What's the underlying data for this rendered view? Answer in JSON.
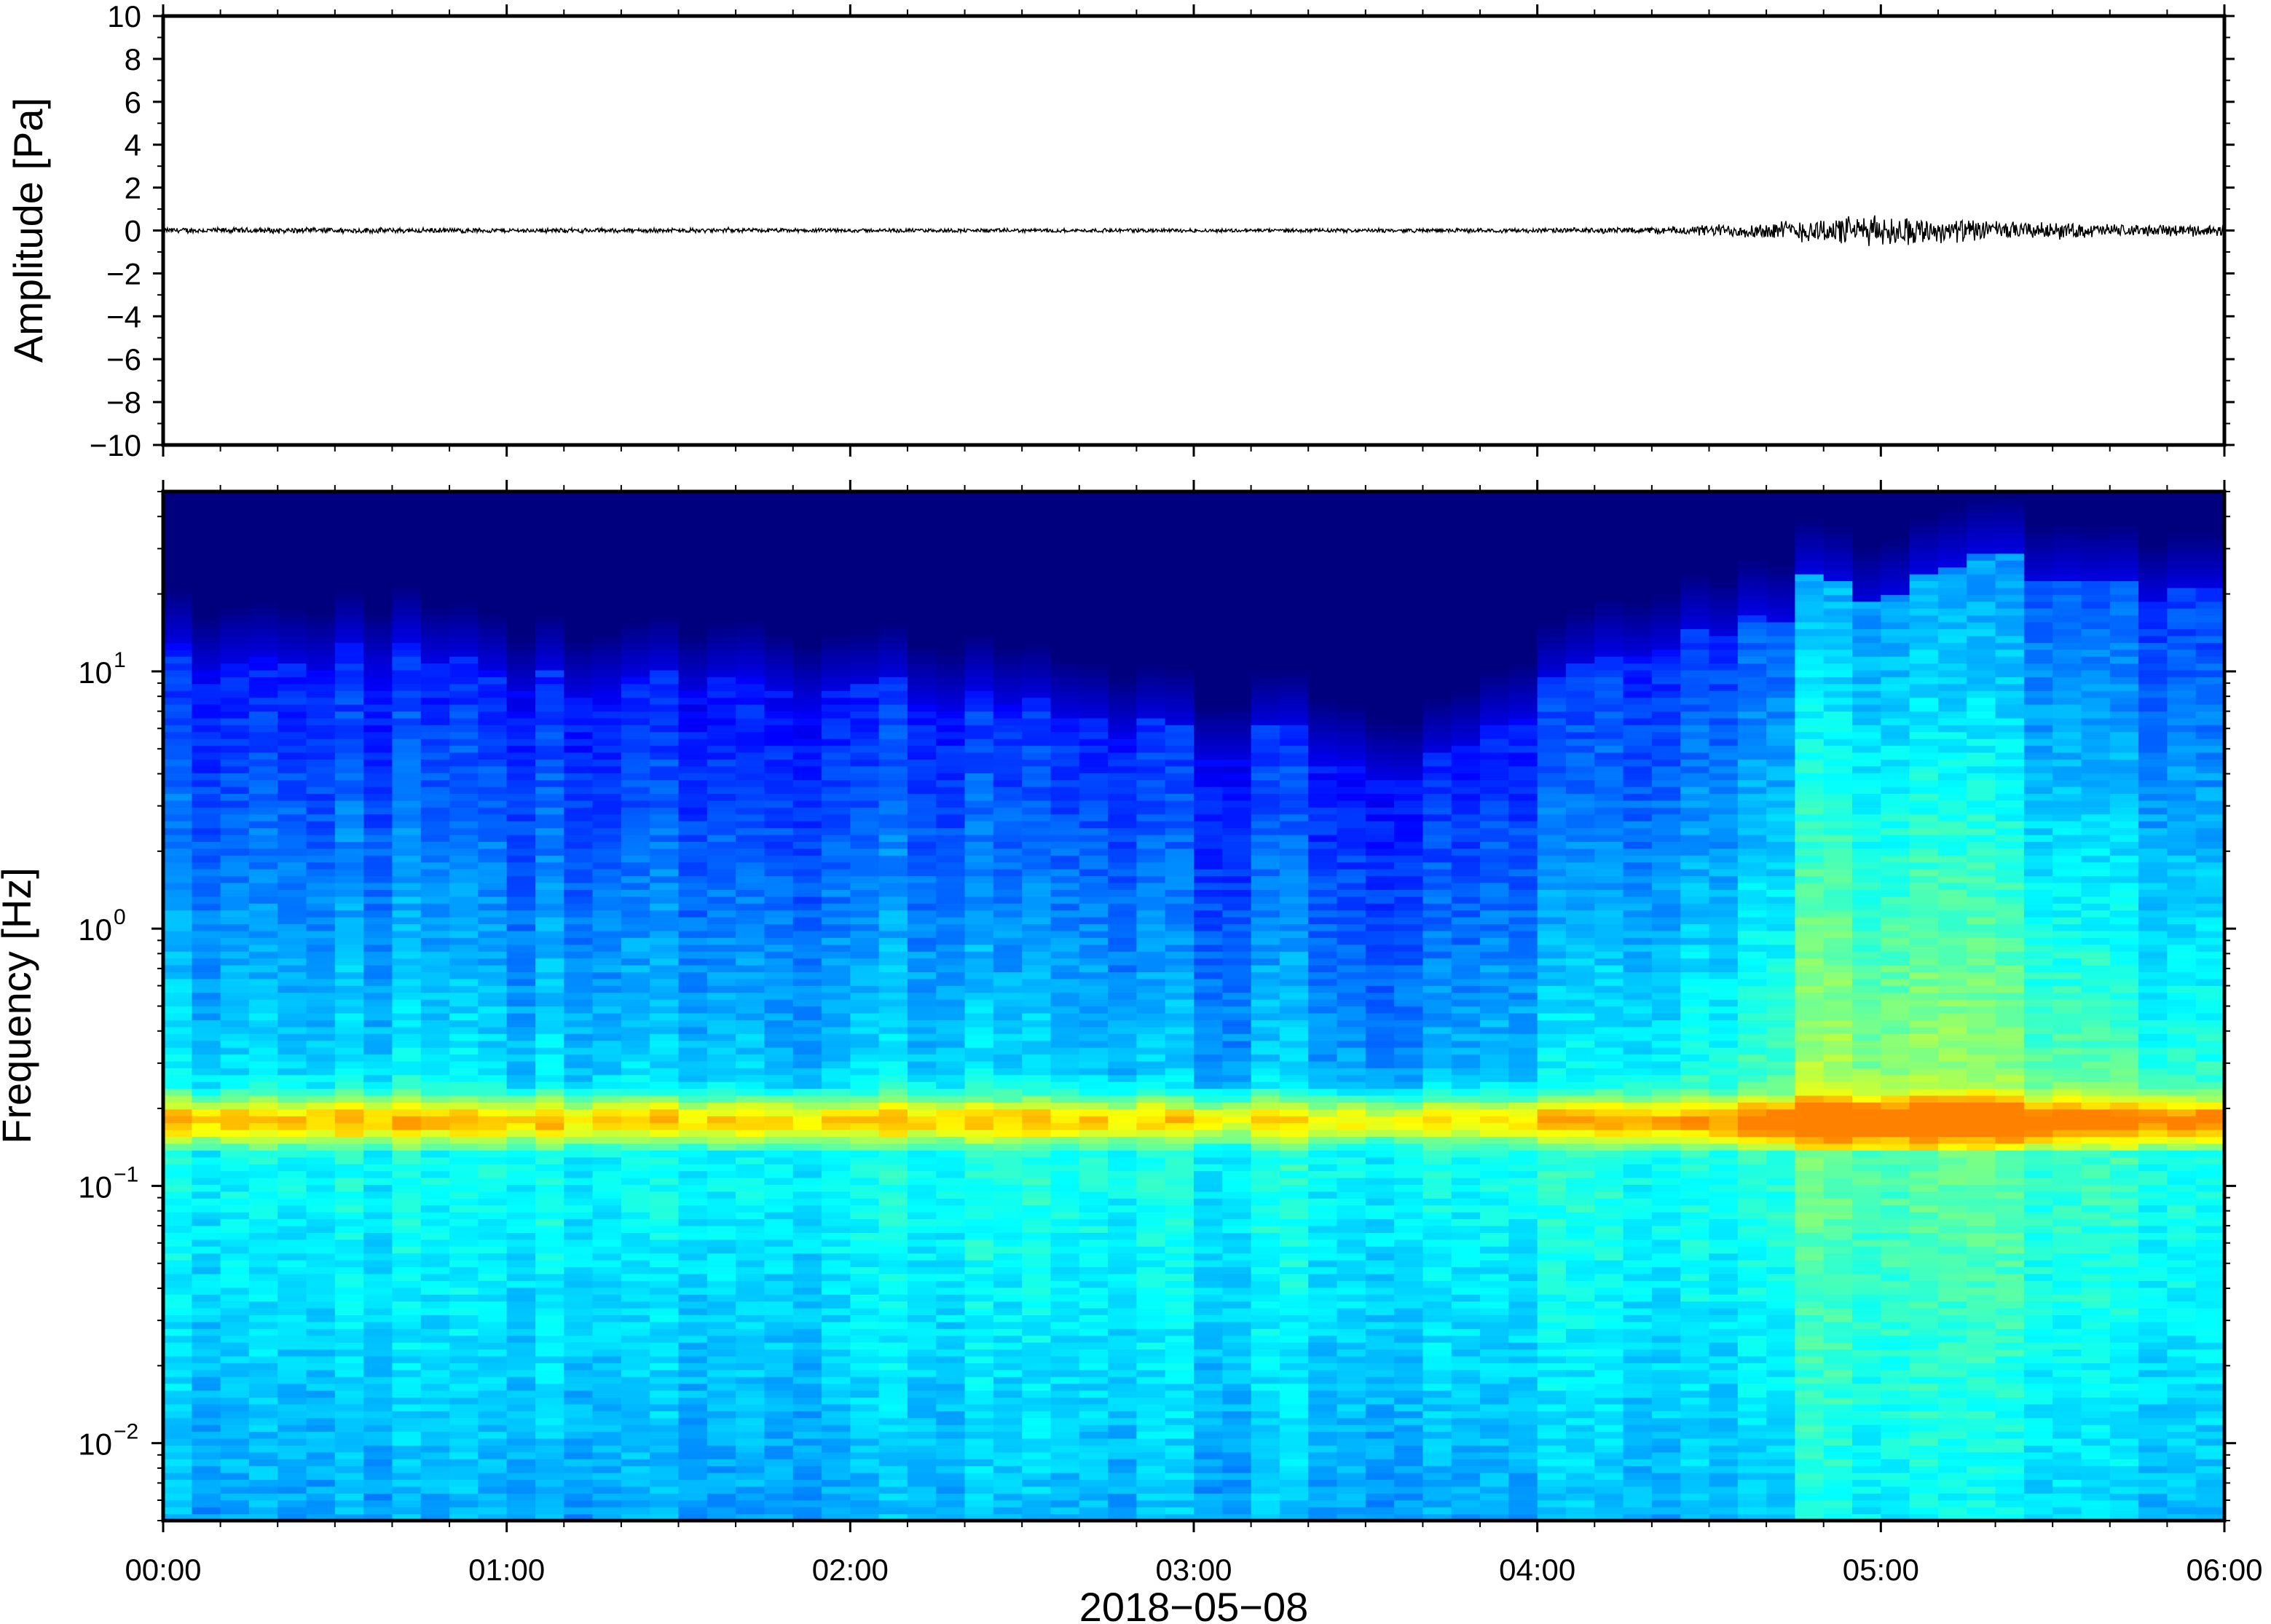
{
  "chart_data": [
    {
      "type": "line",
      "panel": "waveform",
      "ylabel": "Amplitude [Pa]",
      "ylim": [
        -10,
        10
      ],
      "yticks": [
        10,
        8,
        6,
        4,
        2,
        0,
        -2,
        -4,
        -6,
        -8,
        -10
      ],
      "ytick_labels": [
        "10",
        "8",
        "6",
        "4",
        "2",
        "0",
        "−2",
        "−4",
        "−6",
        "−8",
        "−10"
      ],
      "x_range_minutes": [
        0,
        360
      ],
      "grid": false,
      "envelope": {
        "t_minutes": [
          0,
          30,
          60,
          90,
          120,
          150,
          180,
          210,
          240,
          260,
          270,
          280,
          290,
          300,
          310,
          320,
          330,
          340,
          350,
          360
        ],
        "amplitude_pa": [
          0.15,
          0.15,
          0.12,
          0.12,
          0.1,
          0.1,
          0.1,
          0.1,
          0.12,
          0.18,
          0.3,
          0.45,
          0.7,
          0.8,
          0.65,
          0.5,
          0.4,
          0.35,
          0.3,
          0.3
        ]
      }
    },
    {
      "type": "heatmap",
      "panel": "spectrogram",
      "ylabel": "Frequency [Hz]",
      "yscale": "log",
      "ylim": [
        0.005,
        50
      ],
      "yticks": [
        0.01,
        0.1,
        1,
        10
      ],
      "ytick_base": "10",
      "ytick_exponents": [
        "−2",
        "−1",
        "0",
        "1"
      ],
      "xlabel": "2018−05−08",
      "xticks": [
        "00:00",
        "01:00",
        "02:00",
        "03:00",
        "04:00",
        "05:00",
        "06:00"
      ],
      "x_range_minutes": [
        0,
        360
      ],
      "colormap": "jet",
      "colors": [
        "#00007f",
        "#0000ff",
        "#0080ff",
        "#00ffff",
        "#80ff80",
        "#ffff00",
        "#ff8000"
      ],
      "microseism_peak_hz": 0.18,
      "upper_energy_limit": {
        "t_minutes": [
          0,
          20,
          40,
          60,
          80,
          100,
          120,
          140,
          160,
          180,
          200,
          220,
          240,
          260,
          280,
          300,
          320,
          340,
          360
        ],
        "freq_hz": [
          12,
          11,
          12,
          9,
          9,
          10,
          8,
          7,
          6,
          5,
          5,
          4,
          7,
          12,
          18,
          22,
          24,
          20,
          22
        ]
      }
    }
  ]
}
